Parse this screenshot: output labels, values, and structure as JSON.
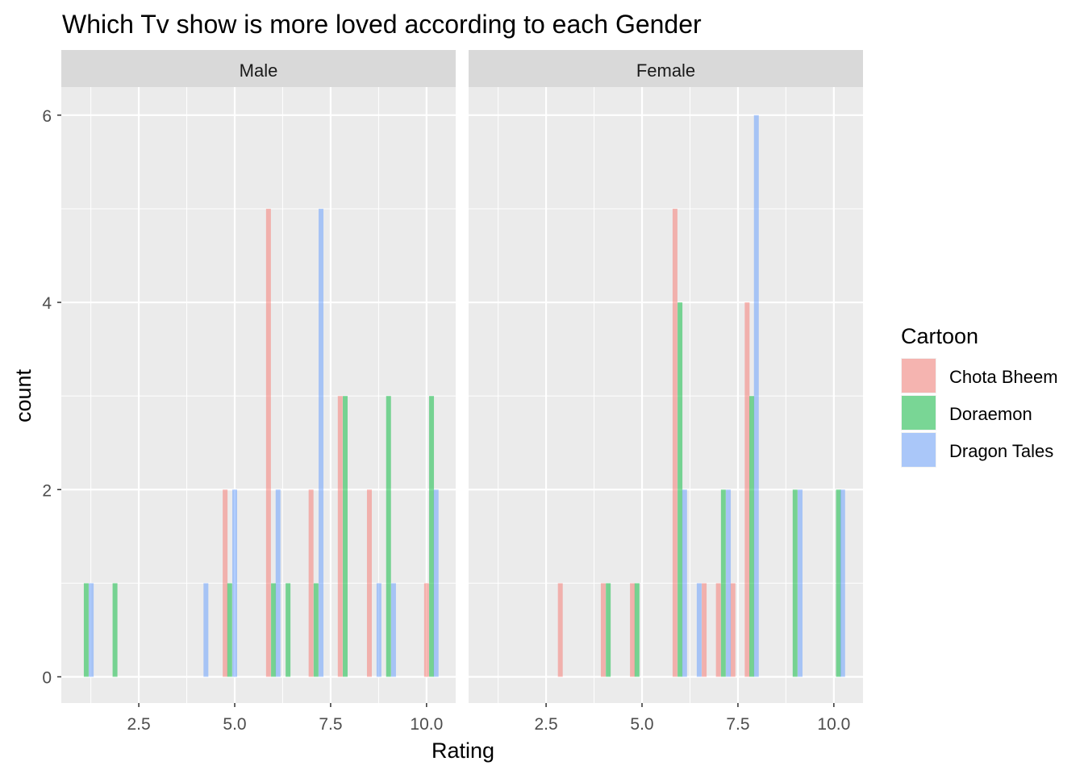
{
  "chart_data": {
    "type": "bar",
    "subtype": "faceted dodged histogram",
    "title": "Which Tv show is more loved according to each Gender",
    "xlabel": "Rating",
    "ylabel": "count",
    "xlim": [
      0.48,
      10.76
    ],
    "ylim": [
      -0.28,
      6.3
    ],
    "x_ticks": [
      "2.5",
      "5.0",
      "7.5",
      "10.0"
    ],
    "x_tick_values": [
      2.5,
      5.0,
      7.5,
      10.0
    ],
    "y_ticks": [
      "0",
      "2",
      "4",
      "6"
    ],
    "y_tick_values": [
      0,
      2,
      4,
      6
    ],
    "bar_width": 0.126,
    "grid": true,
    "legend": {
      "title": "Cartoon",
      "placement": "right",
      "entries": [
        "Chota Bheem",
        "Doraemon",
        "Dragon Tales"
      ]
    },
    "colors": {
      "Chota Bheem": "#F8766D",
      "Doraemon": "#00BA38",
      "Dragon Tales": "#619CFF"
    },
    "facets": [
      {
        "label": "Male",
        "series": [
          {
            "name": "Chota Bheem",
            "points": [
              [
                4.75,
                2
              ],
              [
                5.88,
                5
              ],
              [
                6.99,
                2
              ],
              [
                7.75,
                3
              ],
              [
                8.51,
                2
              ],
              [
                10.0,
                1
              ]
            ]
          },
          {
            "name": "Doraemon",
            "points": [
              [
                1.13,
                1
              ],
              [
                1.88,
                1
              ],
              [
                4.87,
                1
              ],
              [
                6.01,
                1
              ],
              [
                6.39,
                1
              ],
              [
                7.12,
                1
              ],
              [
                7.88,
                3
              ],
              [
                9.01,
                3
              ],
              [
                10.13,
                3
              ]
            ]
          },
          {
            "name": "Dragon Tales",
            "points": [
              [
                1.26,
                1
              ],
              [
                4.25,
                1
              ],
              [
                5.0,
                2
              ],
              [
                6.13,
                2
              ],
              [
                7.25,
                5
              ],
              [
                8.76,
                1
              ],
              [
                9.14,
                1
              ],
              [
                10.25,
                2
              ]
            ]
          }
        ]
      },
      {
        "label": "Female",
        "series": [
          {
            "name": "Chota Bheem",
            "points": [
              [
                2.87,
                1
              ],
              [
                3.99,
                1
              ],
              [
                4.75,
                1
              ],
              [
                5.86,
                5
              ],
              [
                6.62,
                1
              ],
              [
                6.99,
                1
              ],
              [
                7.37,
                1
              ],
              [
                7.74,
                4
              ]
            ]
          },
          {
            "name": "Doraemon",
            "points": [
              [
                4.12,
                1
              ],
              [
                4.87,
                1
              ],
              [
                5.99,
                4
              ],
              [
                7.12,
                2
              ],
              [
                7.86,
                3
              ],
              [
                8.99,
                2
              ],
              [
                10.12,
                2
              ]
            ]
          },
          {
            "name": "Dragon Tales",
            "points": [
              [
                6.11,
                2
              ],
              [
                6.49,
                1
              ],
              [
                7.25,
                2
              ],
              [
                7.98,
                6
              ],
              [
                9.12,
                2
              ],
              [
                10.23,
                2
              ]
            ]
          }
        ]
      }
    ]
  }
}
